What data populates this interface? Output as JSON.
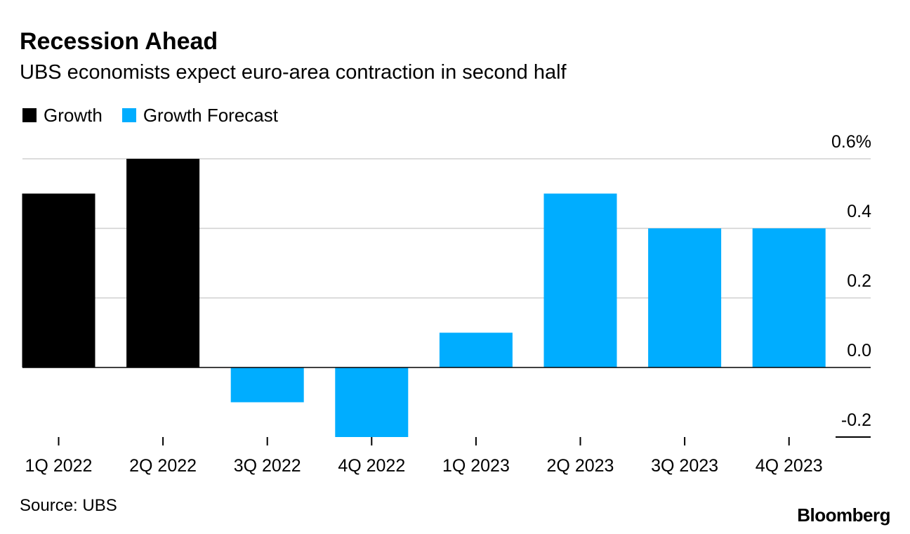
{
  "header": {
    "title": "Recession Ahead",
    "subtitle": "UBS economists expect euro-area contraction in second half"
  },
  "legend": [
    {
      "label": "Growth",
      "color": "#000000"
    },
    {
      "label": "Growth Forecast",
      "color": "#00adff"
    }
  ],
  "footer": {
    "source": "Source: UBS",
    "logo": "Bloomberg"
  },
  "chart_data": {
    "type": "bar",
    "title": "Recession Ahead",
    "subtitle": "UBS economists expect euro-area contraction in second half",
    "xlabel": "",
    "ylabel": "",
    "categories": [
      "1Q 2022",
      "2Q 2022",
      "3Q 2022",
      "4Q 2022",
      "1Q 2023",
      "2Q 2023",
      "3Q 2023",
      "4Q 2023"
    ],
    "values": [
      0.5,
      0.6,
      -0.1,
      -0.2,
      0.1,
      0.5,
      0.4,
      0.4
    ],
    "series_of_each": [
      "Growth",
      "Growth",
      "Growth Forecast",
      "Growth Forecast",
      "Growth Forecast",
      "Growth Forecast",
      "Growth Forecast",
      "Growth Forecast"
    ],
    "series": [
      {
        "name": "Growth",
        "color": "#000000"
      },
      {
        "name": "Growth Forecast",
        "color": "#00adff"
      }
    ],
    "ylim": [
      -0.2,
      0.6
    ],
    "yticks": [
      0.6,
      0.4,
      0.2,
      0.0,
      -0.2
    ],
    "ytick_labels": [
      "0.6%",
      "0.4",
      "0.2",
      "0.0",
      "-0.2"
    ],
    "grid": true,
    "axis_side": "right",
    "legend_position": "top-left"
  }
}
